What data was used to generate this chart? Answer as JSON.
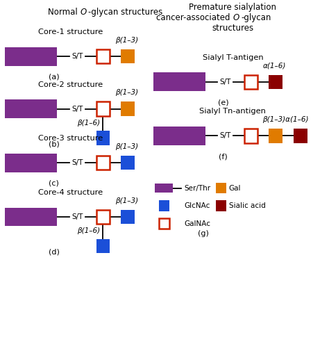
{
  "colors": {
    "purple": "#7B2D8B",
    "orange": "#E07B00",
    "blue": "#1B4FD8",
    "dark_red": "#8B0000",
    "red_outline": "#CC2200",
    "white": "#FFFFFF",
    "black": "#000000"
  },
  "left_title": "Normal ",
  "left_title_italic": "O",
  "left_title_rest": "-glycan structures",
  "right_title_line1": "Premature sialylation",
  "right_title_line2": "cancer-associated ",
  "right_title_line2_italic": "O",
  "right_title_line2_rest": "-glycan",
  "right_title_line3": "structures",
  "fig_w": 4.74,
  "fig_h": 4.92,
  "dpi": 100,
  "xlim": [
    0,
    10
  ],
  "ylim": [
    0,
    10
  ]
}
